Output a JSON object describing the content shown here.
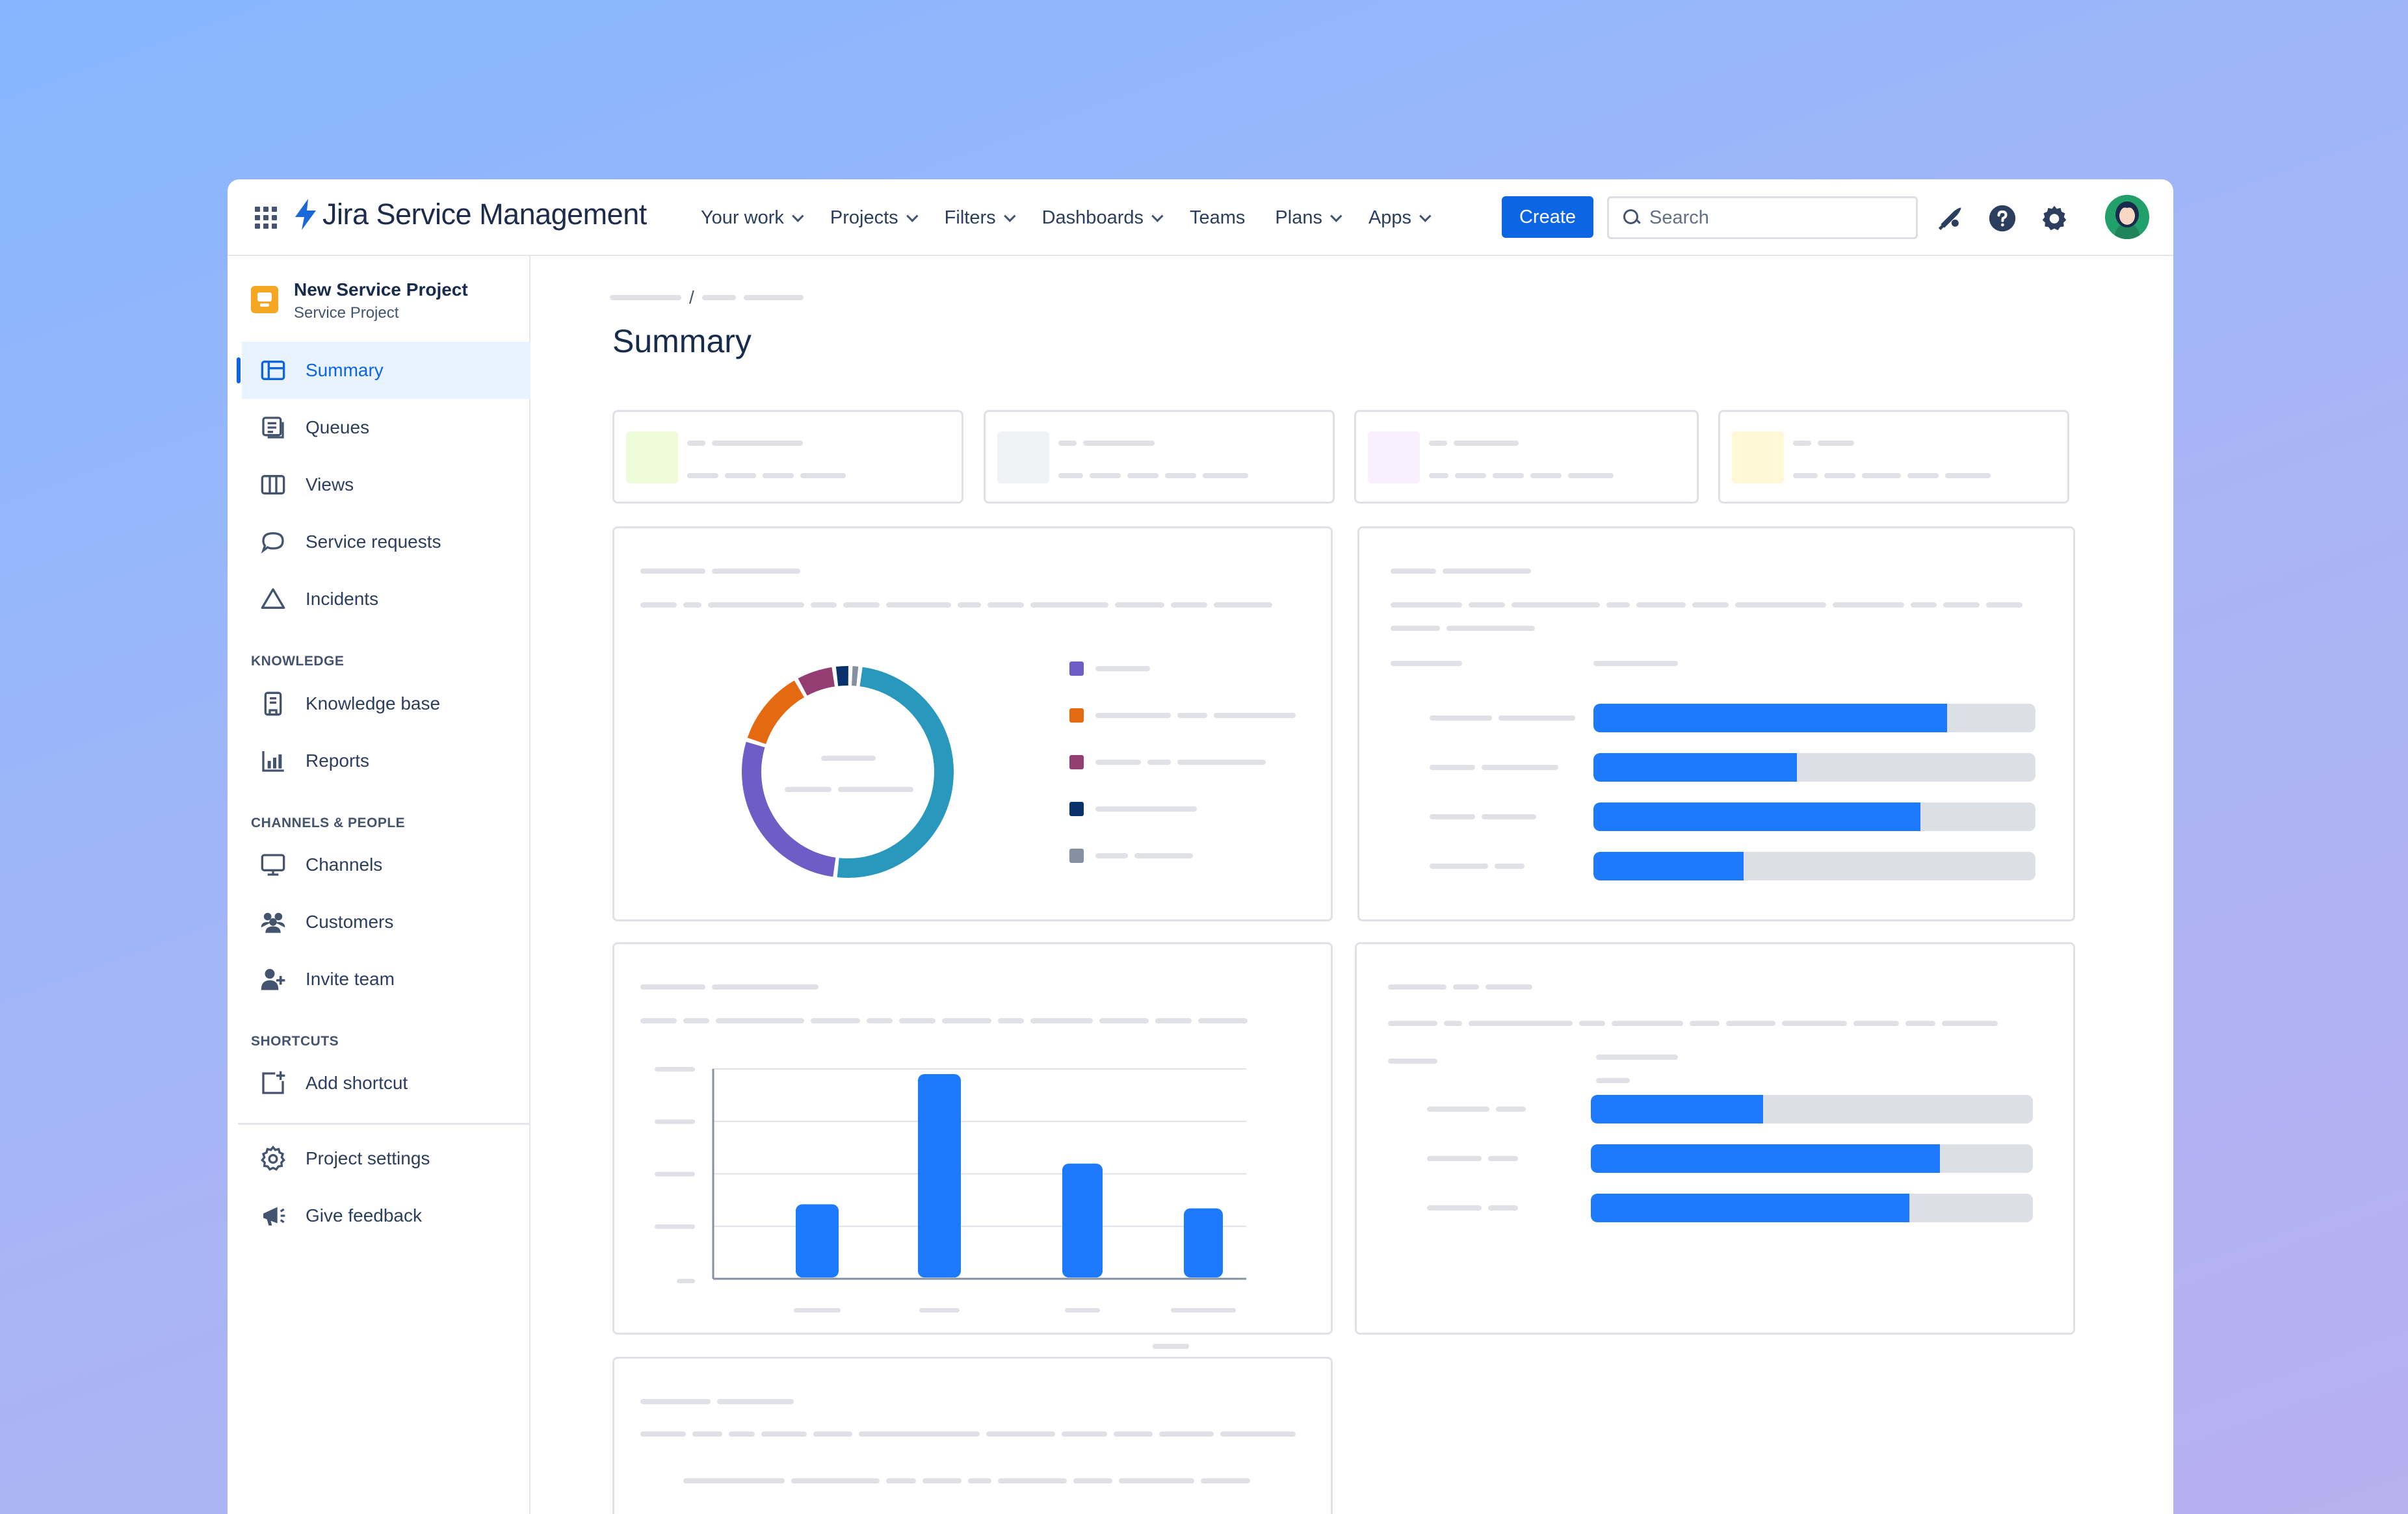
{
  "topnav": {
    "brand": "Jira Service Management",
    "items": [
      {
        "label": "Your work",
        "dropdown": true
      },
      {
        "label": "Projects",
        "dropdown": true
      },
      {
        "label": "Filters",
        "dropdown": true
      },
      {
        "label": "Dashboards",
        "dropdown": true
      },
      {
        "label": "Teams",
        "dropdown": false
      },
      {
        "label": "Plans",
        "dropdown": true
      },
      {
        "label": "Apps",
        "dropdown": true
      }
    ],
    "create_label": "Create",
    "search_placeholder": "Search",
    "icons": [
      "app-switcher-icon",
      "notifications-icon",
      "help-icon",
      "settings-icon"
    ]
  },
  "sidebar": {
    "project_name": "New Service Project",
    "project_type": "Service Project",
    "items": [
      {
        "label": "Summary",
        "icon": "summary-icon",
        "active": true
      },
      {
        "label": "Queues",
        "icon": "queues-icon"
      },
      {
        "label": "Views",
        "icon": "views-icon"
      },
      {
        "label": "Service requests",
        "icon": "speech-bubble-icon"
      },
      {
        "label": "Incidents",
        "icon": "triangle-icon"
      }
    ],
    "knowledge_heading": "KNOWLEDGE",
    "knowledge_items": [
      {
        "label": "Knowledge base",
        "icon": "book-icon"
      },
      {
        "label": "Reports",
        "icon": "bar-chart-icon"
      }
    ],
    "channels_heading": "CHANNELS & PEOPLE",
    "channels_items": [
      {
        "label": "Channels",
        "icon": "monitor-icon"
      },
      {
        "label": "Customers",
        "icon": "people-icon"
      },
      {
        "label": "Invite team",
        "icon": "person-add-icon"
      }
    ],
    "shortcuts_heading": "SHORTCUTS",
    "shortcut_items": [
      {
        "label": "Add shortcut",
        "icon": "add-shortcut-icon"
      }
    ],
    "footer_items": [
      {
        "label": "Project settings",
        "icon": "gear-icon"
      },
      {
        "label": "Give feedback",
        "icon": "megaphone-icon"
      }
    ]
  },
  "main": {
    "breadcrumb_separator": "/",
    "title": "Summary",
    "stat_tiles_colors": [
      "#eefbda",
      "#f1f2f4",
      "#f8eefe",
      "#fff7d6"
    ],
    "donut": {
      "segments": [
        {
          "color": "#2898bd",
          "value": 0.5
        },
        {
          "color": "#6e5dc6",
          "value": 0.28
        },
        {
          "color": "#e56910",
          "value": 0.12
        },
        {
          "color": "#943d73",
          "value": 0.06
        },
        {
          "color": "#09326c",
          "value": 0.025
        },
        {
          "color": "#8590a2",
          "value": 0.015
        }
      ],
      "legend_colors": [
        "#6e5dc6",
        "#e56910",
        "#943d73",
        "#09326c",
        "#8590a2"
      ]
    },
    "progress_top": [
      0.8,
      0.46,
      0.74,
      0.34
    ],
    "progress_bottom": [
      0.39,
      0.79,
      0.72
    ],
    "column_chart": {
      "values": [
        0.36,
        1.0,
        0.56,
        0.34
      ]
    },
    "colors": {
      "accent": "#0c66e4",
      "bar": "#1d7afc",
      "placeholder": "#dfe1e6"
    }
  }
}
